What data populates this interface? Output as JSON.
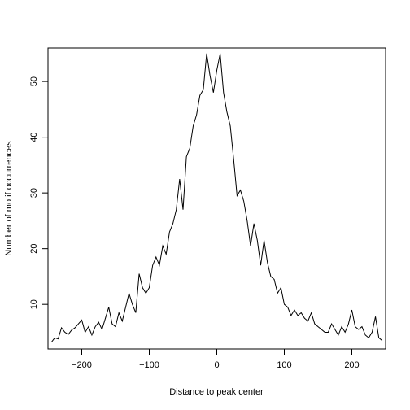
{
  "chart_data": {
    "type": "line",
    "title": "",
    "xlabel": "Distance to peak center",
    "ylabel": "Number of motif occurrences",
    "xlim": [
      -250,
      250
    ],
    "ylim": [
      2,
      56
    ],
    "x_ticks": [
      -200,
      -100,
      0,
      100,
      200
    ],
    "x_tick_labels": [
      "−200",
      "−100",
      "0",
      "100",
      "200"
    ],
    "y_ticks": [
      10,
      20,
      30,
      40,
      50
    ],
    "y_tick_labels": [
      "10",
      "20",
      "30",
      "40",
      "50"
    ],
    "grid": false,
    "legend": "none",
    "line_color": "#000000",
    "series": [
      {
        "x": [
          -245,
          -240,
          -235,
          -230,
          -225,
          -220,
          -215,
          -210,
          -205,
          -200,
          -195,
          -190,
          -185,
          -180,
          -175,
          -170,
          -165,
          -160,
          -155,
          -150,
          -145,
          -140,
          -135,
          -130,
          -125,
          -120,
          -115,
          -110,
          -105,
          -100,
          -95,
          -90,
          -85,
          -80,
          -75,
          -70,
          -65,
          -60,
          -55,
          -50,
          -45,
          -40,
          -35,
          -30,
          -25,
          -20,
          -15,
          -10,
          -5,
          0,
          5,
          10,
          15,
          20,
          25,
          30,
          35,
          40,
          45,
          50,
          55,
          60,
          65,
          70,
          75,
          80,
          85,
          90,
          95,
          100,
          105,
          110,
          115,
          120,
          125,
          130,
          135,
          140,
          145,
          150,
          155,
          160,
          165,
          170,
          175,
          180,
          185,
          190,
          195,
          200,
          205,
          210,
          215,
          220,
          225,
          230,
          235,
          240,
          245
        ],
        "values": [
          3.2,
          4.0,
          3.8,
          5.8,
          5.0,
          4.6,
          5.4,
          5.8,
          6.5,
          7.2,
          5.0,
          6.0,
          4.5,
          6.0,
          6.8,
          5.5,
          7.5,
          9.5,
          6.5,
          6.0,
          8.5,
          7.0,
          9.5,
          12.0,
          10.0,
          8.5,
          15.5,
          13.0,
          12.0,
          13.0,
          17.0,
          18.5,
          17.0,
          20.5,
          19.0,
          23.0,
          24.5,
          27.0,
          32.5,
          27.0,
          36.5,
          38.0,
          42.0,
          44.0,
          47.5,
          48.5,
          55.0,
          51.0,
          48.0,
          52.0,
          55.0,
          48.0,
          44.5,
          42.0,
          36.0,
          29.5,
          30.5,
          28.5,
          25.0,
          20.5,
          24.5,
          21.5,
          17.0,
          21.5,
          17.5,
          15.0,
          14.5,
          12.0,
          13.0,
          10.0,
          9.5,
          8.0,
          9.0,
          8.0,
          8.5,
          7.5,
          7.0,
          8.5,
          6.5,
          6.0,
          5.5,
          5.0,
          5.0,
          6.5,
          5.5,
          4.5,
          6.0,
          5.0,
          6.5,
          9.0,
          6.0,
          5.5,
          6.0,
          4.5,
          4.0,
          5.0,
          7.8,
          4.0,
          3.5
        ]
      }
    ]
  }
}
